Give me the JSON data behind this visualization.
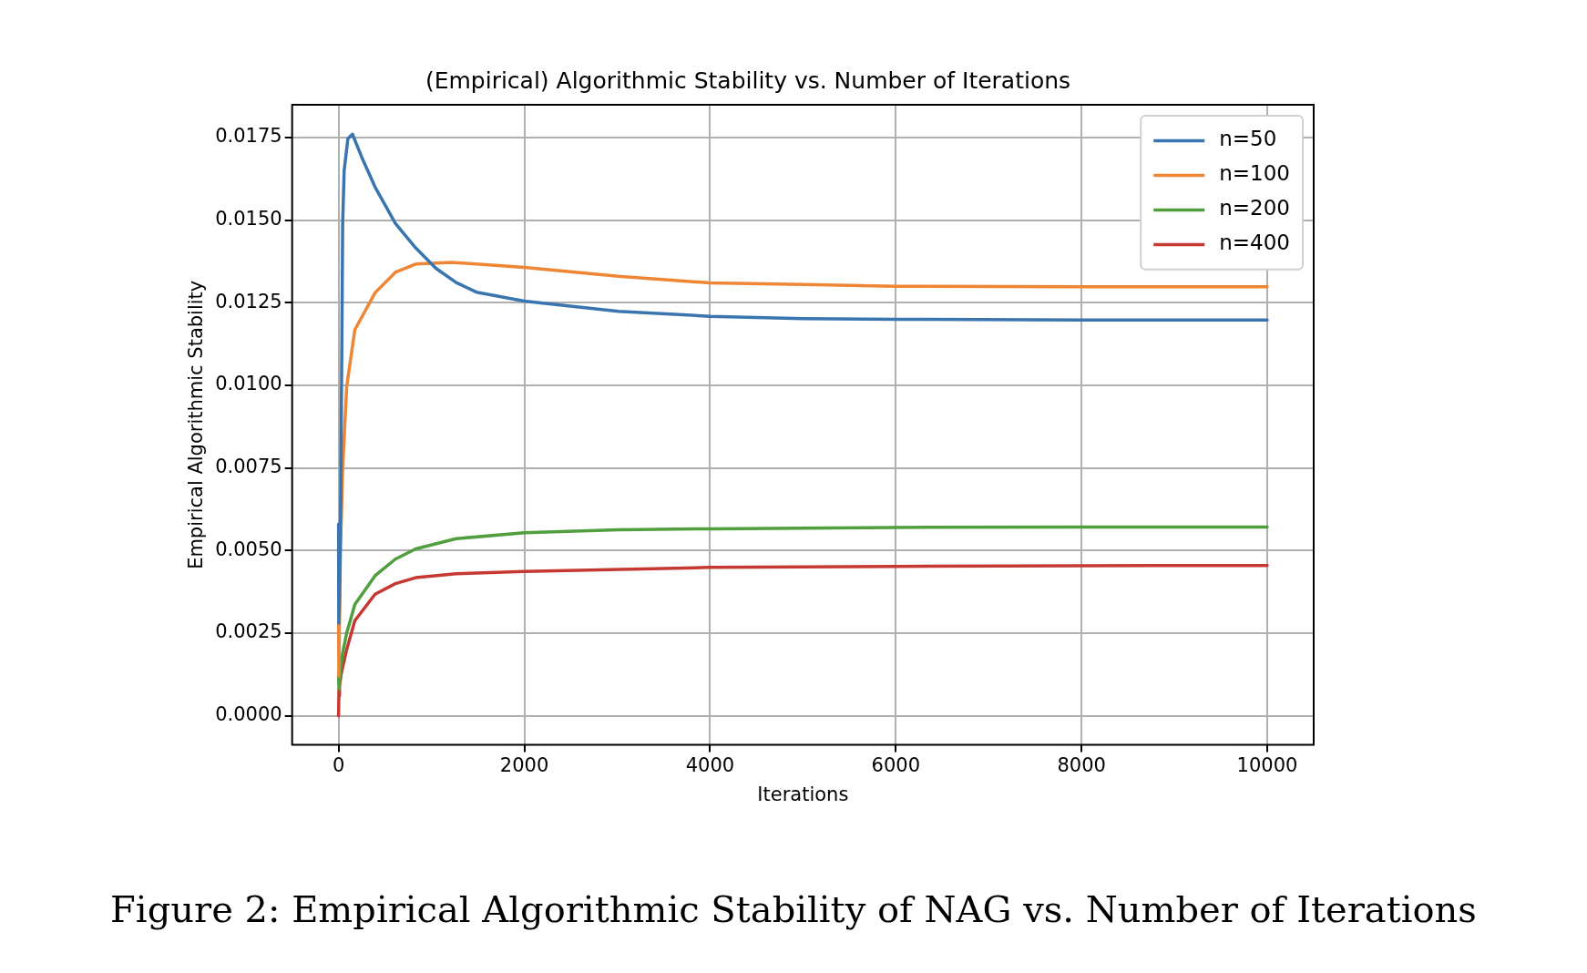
{
  "chart_data": {
    "type": "line",
    "title": "(Empirical) Algorithmic Stability vs. Number of Iterations",
    "xlabel": "Iterations",
    "ylabel": "Empirical Algorithmic Stability",
    "annotations": [
      "Figure 2: Empirical Algorithmic Stability of NAG vs. Number of Iterations"
    ],
    "series": [
      {
        "name": "n=50",
        "color": "#3a75b0",
        "x": [
          0,
          2,
          10,
          22,
          35,
          44,
          60,
          100,
          150,
          250,
          393,
          611,
          830,
          1048,
          1266,
          1485,
          2000,
          3013,
          4000,
          5000,
          6000,
          8000,
          10000
        ],
        "values": [
          0.0058,
          0.0028,
          0.0035,
          0.0062,
          0.0112,
          0.0149,
          0.0165,
          0.01746,
          0.0176,
          0.0169,
          0.016,
          0.0149,
          0.01416,
          0.01354,
          0.01311,
          0.01282,
          0.01255,
          0.01224,
          0.01209,
          0.01202,
          0.012,
          0.01198,
          0.01198
        ]
      },
      {
        "name": "n=100",
        "color": "#ef8636",
        "x": [
          0,
          3,
          8,
          20,
          44,
          87,
          175,
          393,
          611,
          830,
          1223,
          2000,
          3013,
          4000,
          5000,
          6000,
          8000,
          10000
        ],
        "values": [
          0.0028,
          0.0012,
          0.0025,
          0.005,
          0.00746,
          0.00995,
          0.01168,
          0.0128,
          0.01342,
          0.01367,
          0.01372,
          0.01357,
          0.0133,
          0.0131,
          0.01305,
          0.013,
          0.01298,
          0.01298
        ]
      },
      {
        "name": "n=200",
        "color": "#519e3e",
        "x": [
          0,
          5,
          20,
          44,
          87,
          175,
          393,
          611,
          830,
          1266,
          2000,
          3013,
          4000,
          6000,
          8000,
          10000
        ],
        "values": [
          0.0012,
          0.0008,
          0.0014,
          0.0019,
          0.0025,
          0.00337,
          0.00424,
          0.00474,
          0.00505,
          0.00536,
          0.00554,
          0.00563,
          0.00566,
          0.0057,
          0.00571,
          0.00571
        ]
      },
      {
        "name": "n=400",
        "color": "#c53932",
        "x": [
          0,
          4,
          8,
          12,
          30,
          87,
          175,
          393,
          611,
          830,
          1266,
          2000,
          3991,
          6000,
          8000,
          10000
        ],
        "values": [
          0.0,
          0.0008,
          0.0006,
          0.0009,
          0.0013,
          0.002,
          0.00288,
          0.00368,
          0.004,
          0.00418,
          0.0043,
          0.00437,
          0.00449,
          0.00452,
          0.00454,
          0.00455
        ]
      }
    ],
    "xlim": [
      -500,
      10500
    ],
    "xticks": [
      0,
      2000,
      4000,
      6000,
      8000,
      10000
    ],
    "ylim": [
      -0.00088,
      0.01849
    ],
    "yticks": [
      {
        "value": 0,
        "label": "0.0000"
      },
      {
        "value": 0.0025,
        "label": "0.0025"
      },
      {
        "value": 0.005,
        "label": "0.0050"
      },
      {
        "value": 0.0075,
        "label": "0.0075"
      },
      {
        "value": 0.01,
        "label": "0.0100"
      },
      {
        "value": 0.0125,
        "label": "0.0125"
      },
      {
        "value": 0.015,
        "label": "0.0150"
      },
      {
        "value": 0.0175,
        "label": "0.0175"
      }
    ],
    "grid": true,
    "legend": "top right",
    "marker": "none",
    "line_style": "solid"
  }
}
